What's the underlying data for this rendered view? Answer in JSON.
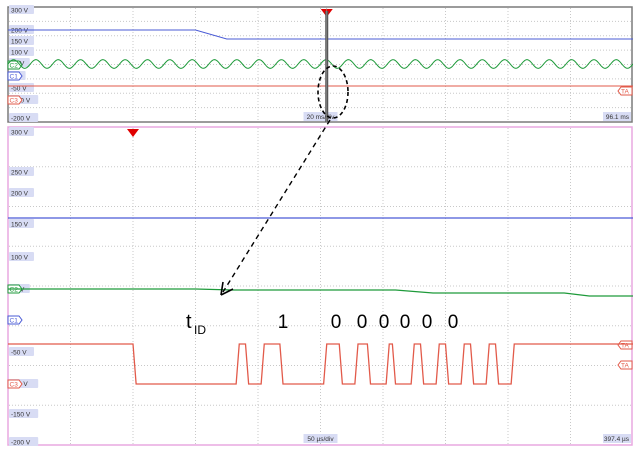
{
  "chart_data": [
    {
      "type": "line",
      "title": "",
      "y_ticks": [
        "300 V",
        "200 V",
        "150 V",
        "100 V",
        "50 V",
        "0 V",
        "-50 V",
        "-100 V",
        "-200 V"
      ],
      "timebase_label": "20 ms/div",
      "right_time_label": "96.1 ms",
      "channel_labels": [
        "C2",
        "C1",
        "C3"
      ],
      "right_trace_labels": [
        "TA"
      ],
      "series": [
        {
          "name": "",
          "x": [
            0,
            3,
            3.5,
            10
          ],
          "y": [
            200,
            200,
            175,
            175
          ]
        },
        {
          "name": "",
          "x": [
            0,
            10
          ],
          "y": [
            50,
            50
          ],
          "ripple_amplitude": 18,
          "ripple_periods": 28
        },
        {
          "name": "",
          "x": [
            0,
            10
          ],
          "y": [
            -50,
            -50
          ]
        }
      ],
      "trigger_marker_x": 5.1,
      "zoom_cursor_x": 5.1
    },
    {
      "type": "line",
      "title": "",
      "y_ticks": [
        "300 V",
        "250 V",
        "200 V",
        "150 V",
        "100 V",
        "50 V",
        "0 V",
        "-50 V",
        "-100 V",
        "-150 V",
        "-200 V"
      ],
      "timebase_label": "50 µs/div",
      "right_time_label": "397.4 µs",
      "channel_labels": [
        "C2",
        "C1",
        "C3"
      ],
      "right_trace_labels": [
        "TA",
        "TA"
      ],
      "annotation_label": "t",
      "annotation_subscript": "ID",
      "bit_labels": [
        "1",
        "0",
        "0",
        "0",
        "0",
        "0",
        "0"
      ],
      "series": [
        {
          "name": "",
          "x": [
            0,
            10
          ],
          "y": [
            150,
            150
          ]
        },
        {
          "name": "",
          "x": [
            0,
            3.0,
            3.6,
            6.2,
            6.8,
            8.9,
            9.3,
            10
          ],
          "y": [
            50,
            50,
            48,
            48,
            45,
            45,
            40,
            40
          ]
        },
        {
          "name": "",
          "x": [
            0,
            2.0,
            2.05,
            3.65,
            3.7,
            3.8,
            3.85,
            4.05,
            4.1,
            4.1,
            4.2,
            4.35,
            4.4,
            5.05,
            5.1,
            5.3,
            5.35,
            5.55,
            5.6,
            5.75,
            5.8,
            6.05,
            6.1,
            6.15,
            6.2,
            6.45,
            6.5,
            6.6,
            6.65,
            6.85,
            6.9,
            7.0,
            7.05,
            7.25,
            7.3,
            7.4,
            7.45,
            7.65,
            7.7,
            7.8,
            7.85,
            8.05,
            8.1,
            10
          ],
          "y": [
            -50,
            -50,
            -100,
            -100,
            -50,
            -50,
            -100,
            -100,
            -50,
            -50,
            -50,
            -50,
            -100,
            -100,
            -50,
            -50,
            -100,
            -100,
            -50,
            -50,
            -100,
            -100,
            -50,
            -50,
            -100,
            -100,
            -50,
            -50,
            -100,
            -100,
            -50,
            -50,
            -100,
            -100,
            -50,
            -50,
            -100,
            -100,
            -50,
            -50,
            -100,
            -100,
            -50,
            -50
          ]
        }
      ],
      "trigger_marker_x": 2.0
    }
  ],
  "colors": {
    "blue": "#4a5bd6",
    "green": "#1e9a3a",
    "red": "#e25a4a",
    "grid": "#c8c8c8",
    "frame_top": "#7a7a7a",
    "frame_bottom": "#e8a8e0",
    "tick_bg": "#d8dcf4",
    "trigger": "#e00000"
  }
}
